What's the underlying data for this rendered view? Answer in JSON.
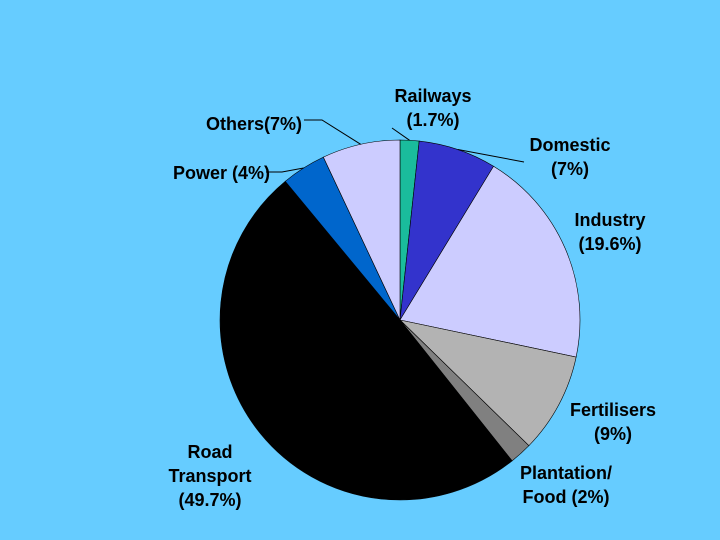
{
  "page": {
    "background": "#66ccff"
  },
  "chart_data": {
    "type": "pie",
    "start_angle_deg": 0,
    "direction": "clockwise",
    "slices": [
      {
        "label_lines": [
          "Railways",
          "(1.7%)"
        ],
        "value": 1.7,
        "color": "#1abc9c"
      },
      {
        "label_lines": [
          "Domestic",
          "(7%)"
        ],
        "value": 7,
        "color": "#3333cc"
      },
      {
        "label_lines": [
          "Industry",
          "(19.6%)"
        ],
        "value": 19.6,
        "color": "#ccccff"
      },
      {
        "label_lines": [
          "Fertilisers",
          "(9%)"
        ],
        "value": 9,
        "color": "#b3b3b3"
      },
      {
        "label_lines": [
          "Plantation/",
          "Food (2%)"
        ],
        "value": 2,
        "color": "#808080"
      },
      {
        "label_lines": [
          "Road",
          "Transport",
          "(49.7%)"
        ],
        "value": 49.7,
        "color": "#000000"
      },
      {
        "label_lines": [
          "Power (4%)"
        ],
        "value": 4,
        "color": "#0066cc"
      },
      {
        "label_lines": [
          "Others(7%)"
        ],
        "value": 7,
        "color": "#ccccff"
      }
    ]
  }
}
